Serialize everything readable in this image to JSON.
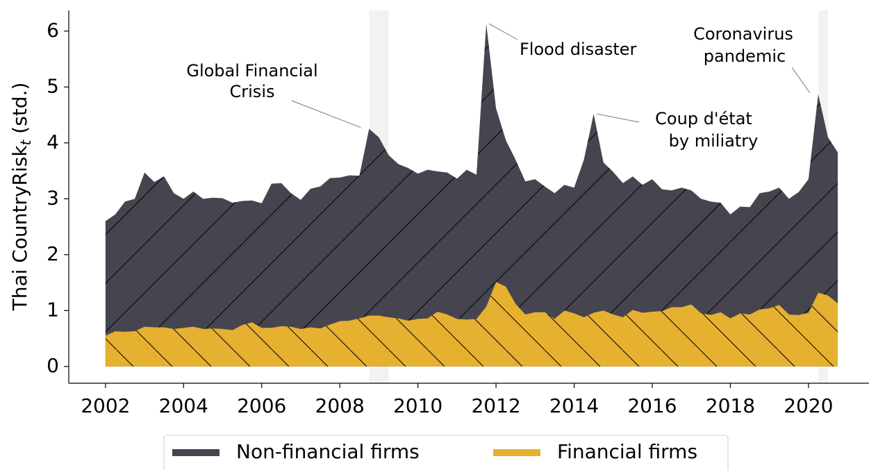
{
  "chart_data": {
    "type": "area",
    "ylabel": {
      "text": "Thai CountryRisk",
      "subscript": "t",
      "suffix": " (std.)"
    },
    "x": [
      2002,
      2002.25,
      2002.5,
      2002.75,
      2003,
      2003.25,
      2003.5,
      2003.75,
      2004,
      2004.25,
      2004.5,
      2004.75,
      2005,
      2005.25,
      2005.5,
      2005.75,
      2006,
      2006.25,
      2006.5,
      2006.75,
      2007,
      2007.25,
      2007.5,
      2007.75,
      2008,
      2008.25,
      2008.5,
      2008.75,
      2009,
      2009.25,
      2009.5,
      2009.75,
      2010,
      2010.25,
      2010.5,
      2010.75,
      2011,
      2011.25,
      2011.5,
      2011.75,
      2012,
      2012.25,
      2012.5,
      2012.75,
      2013,
      2013.25,
      2013.5,
      2013.75,
      2014,
      2014.25,
      2014.5,
      2014.75,
      2015,
      2015.25,
      2015.5,
      2015.75,
      2016,
      2016.25,
      2016.5,
      2016.75,
      2017,
      2017.25,
      2017.5,
      2017.75,
      2018,
      2018.25,
      2018.5,
      2018.75,
      2019,
      2019.25,
      2019.5,
      2019.75,
      2020,
      2020.25,
      2020.5,
      2020.75
    ],
    "series": [
      {
        "name": "Non-financial firms",
        "color": "#46454f",
        "hatch": "/",
        "values": [
          2.6,
          2.72,
          2.95,
          3.0,
          3.47,
          3.3,
          3.4,
          3.1,
          3.0,
          3.13,
          3.0,
          3.02,
          3.01,
          2.93,
          2.96,
          2.97,
          2.92,
          3.27,
          3.28,
          3.1,
          2.98,
          3.18,
          3.22,
          3.37,
          3.38,
          3.42,
          3.41,
          4.25,
          4.1,
          3.78,
          3.62,
          3.55,
          3.45,
          3.52,
          3.49,
          3.47,
          3.36,
          3.52,
          3.43,
          6.13,
          4.62,
          4.05,
          3.7,
          3.31,
          3.35,
          3.22,
          3.1,
          3.25,
          3.2,
          3.7,
          4.52,
          3.65,
          3.48,
          3.28,
          3.4,
          3.25,
          3.35,
          3.17,
          3.15,
          3.2,
          3.15,
          3.0,
          2.95,
          2.93,
          2.72,
          2.86,
          2.85,
          3.1,
          3.13,
          3.2,
          3.0,
          3.12,
          3.35,
          4.87,
          4.1,
          3.83
        ]
      },
      {
        "name": "Financial firms",
        "color": "#e6b030",
        "hatch": "\\",
        "values": [
          0.55,
          0.63,
          0.62,
          0.63,
          0.71,
          0.7,
          0.7,
          0.67,
          0.69,
          0.71,
          0.67,
          0.68,
          0.67,
          0.65,
          0.74,
          0.79,
          0.69,
          0.69,
          0.72,
          0.71,
          0.67,
          0.7,
          0.68,
          0.75,
          0.81,
          0.82,
          0.86,
          0.91,
          0.91,
          0.88,
          0.86,
          0.82,
          0.85,
          0.86,
          0.98,
          0.93,
          0.85,
          0.84,
          0.85,
          1.07,
          1.51,
          1.43,
          1.12,
          0.93,
          0.97,
          0.97,
          0.85,
          1.0,
          0.95,
          0.88,
          0.96,
          1.0,
          0.93,
          0.88,
          1.01,
          0.96,
          0.98,
          0.99,
          1.06,
          1.06,
          1.11,
          0.95,
          0.92,
          0.97,
          0.86,
          0.95,
          0.93,
          1.02,
          1.04,
          1.1,
          0.93,
          0.92,
          0.96,
          1.32,
          1.27,
          1.13
        ]
      }
    ],
    "shaded_spans": [
      [
        2008.75,
        2009.25
      ],
      [
        2020.25,
        2020.5
      ]
    ],
    "annotations": [
      {
        "lines": [
          "Global Financial",
          "Crisis"
        ],
        "x": 2008.75,
        "y": 4.25
      },
      {
        "lines": [
          "Flood disaster"
        ],
        "x": 2011.75,
        "y": 6.13
      },
      {
        "lines": [
          "Coup d'état",
          "by miliatry"
        ],
        "x": 2014.5,
        "y": 4.52
      },
      {
        "lines": [
          "Coronavirus",
          "pandemic"
        ],
        "x": 2020.25,
        "y": 4.87
      }
    ],
    "xlim": [
      2001.06,
      2021.55
    ],
    "xticks": [
      2002,
      2004,
      2006,
      2008,
      2010,
      2012,
      2014,
      2016,
      2018,
      2020
    ],
    "ylim": [
      -0.3,
      6.37
    ],
    "yticks": [
      0,
      1,
      2,
      3,
      4,
      5,
      6
    ],
    "legend": "lower center"
  }
}
